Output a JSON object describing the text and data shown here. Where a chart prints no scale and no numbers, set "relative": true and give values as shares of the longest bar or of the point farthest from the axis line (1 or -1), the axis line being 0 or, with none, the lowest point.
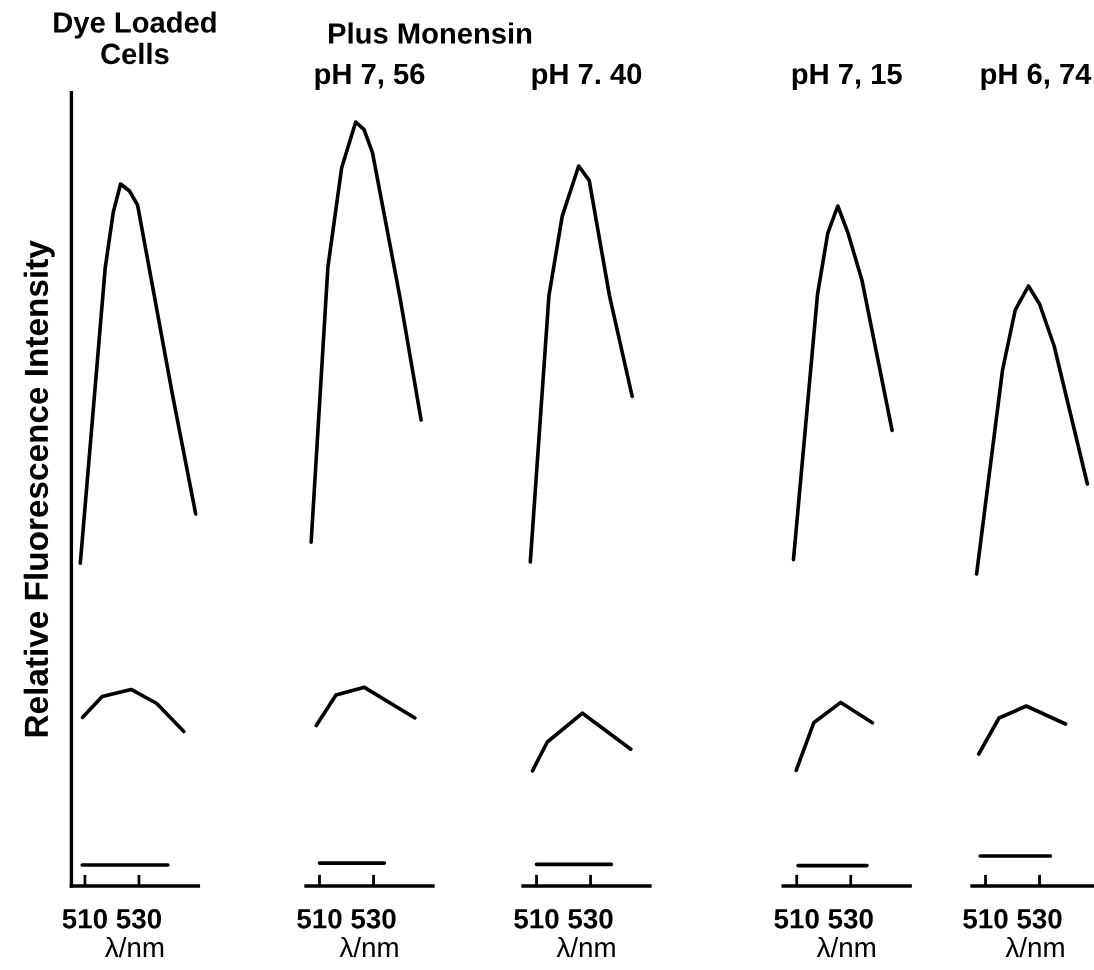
{
  "chart_data": [
    {
      "type": "line",
      "title": "Dye Loaded\nCells",
      "xlabel": "λ/nm",
      "ylabel": "Relative Fluorescence Intensity",
      "relative": true,
      "xlim": [
        505,
        552
      ],
      "xticks": [
        510,
        530
      ],
      "tick_labels": "x",
      "series": [
        {
          "color": "#000000",
          "x": [
            508.3,
            517.5,
            520.5,
            523.2,
            526.5,
            529.5,
            542.4,
            551
          ],
          "values": [
            0.46,
            0.88,
            0.96,
            1.0,
            0.99,
            0.97,
            0.7,
            0.53
          ]
        },
        {
          "color": "#000000",
          "x": [
            509.1,
            516.4,
            527.1,
            536.6,
            546.6
          ],
          "values": [
            0.24,
            0.27,
            0.28,
            0.26,
            0.22
          ]
        },
        {
          "color": "#000000",
          "x": [
            509,
            540.7
          ],
          "values": [
            0.03,
            0.03
          ]
        }
      ]
    },
    {
      "type": "line",
      "title": "pH 7, 56",
      "xlabel": "λ/nm",
      "annotations": [
        "Plus Monensin"
      ],
      "relative": true,
      "xlim": [
        505,
        552
      ],
      "xticks": [
        510,
        530
      ],
      "tick_labels": "x",
      "series": [
        {
          "color": "#000000",
          "x": [
            506.9,
            513.1,
            518.2,
            523.4,
            526.5,
            529.6,
            539.8,
            547.6
          ],
          "values": [
            0.45,
            0.81,
            0.94,
            1.0,
            0.99,
            0.96,
            0.77,
            0.61
          ]
        },
        {
          "color": "#000000",
          "x": [
            508.8,
            516.1,
            526.6,
            545.3
          ],
          "values": [
            0.21,
            0.25,
            0.26,
            0.22
          ]
        },
        {
          "color": "#000000",
          "x": [
            510,
            534
          ],
          "values": [
            0.03,
            0.03
          ]
        }
      ]
    },
    {
      "type": "line",
      "title": "pH 7. 40",
      "xlabel": "λ/nm",
      "relative": true,
      "xlim": [
        505,
        552
      ],
      "xticks": [
        510,
        530
      ],
      "tick_labels": "x",
      "series": [
        {
          "color": "#000000",
          "x": [
            507.7,
            514.6,
            519.5,
            525.6,
            529.5,
            537,
            545.4
          ],
          "values": [
            0.45,
            0.82,
            0.93,
            1.0,
            0.98,
            0.82,
            0.68
          ]
        },
        {
          "color": "#000000",
          "x": [
            508.5,
            514,
            527,
            544.9
          ],
          "values": [
            0.16,
            0.2,
            0.24,
            0.19
          ]
        },
        {
          "color": "#000000",
          "x": [
            510,
            537.7
          ],
          "values": [
            0.03,
            0.03
          ]
        }
      ]
    },
    {
      "type": "line",
      "title": "pH 7, 15",
      "xlabel": "λ/nm",
      "relative": true,
      "xlim": [
        505,
        552
      ],
      "xticks": [
        510,
        530
      ],
      "tick_labels": "x",
      "series": [
        {
          "color": "#000000",
          "x": [
            508.8,
            517.7,
            521.5,
            525.2,
            529,
            534.2,
            545.3
          ],
          "values": [
            0.48,
            0.87,
            0.96,
            1.0,
            0.96,
            0.89,
            0.67
          ]
        },
        {
          "color": "#000000",
          "x": [
            509.8,
            516.3,
            526.3,
            538
          ],
          "values": [
            0.17,
            0.24,
            0.27,
            0.24
          ]
        },
        {
          "color": "#000000",
          "x": [
            510.5,
            536
          ],
          "values": [
            0.03,
            0.03
          ]
        }
      ]
    },
    {
      "type": "line",
      "title": "pH 6, 74",
      "xlabel": "λ/nm",
      "relative": true,
      "xlim": [
        505,
        552
      ],
      "xticks": [
        510,
        530
      ],
      "tick_labels": "x",
      "series": [
        {
          "color": "#000000",
          "x": [
            506.7,
            516.3,
            521,
            525.9,
            530,
            535.4,
            547.7
          ],
          "values": [
            0.52,
            0.86,
            0.96,
            1.0,
            0.97,
            0.9,
            0.67
          ]
        },
        {
          "color": "#000000",
          "x": [
            507.5,
            515,
            525.1,
            539.6
          ],
          "values": [
            0.22,
            0.28,
            0.3,
            0.27
          ]
        },
        {
          "color": "#000000",
          "x": [
            508,
            534
          ],
          "values": [
            0.05,
            0.05
          ]
        }
      ]
    }
  ]
}
